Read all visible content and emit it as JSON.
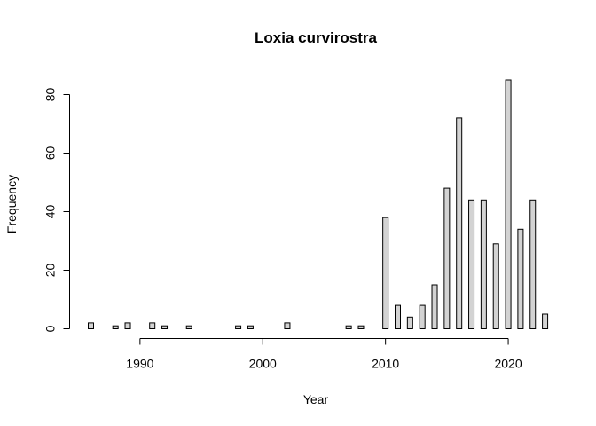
{
  "chart_data": {
    "type": "bar",
    "title": "Loxia curvirostra",
    "xlabel": "Year",
    "ylabel": "Frequency",
    "x": [
      1986,
      1987,
      1988,
      1989,
      1990,
      1991,
      1992,
      1993,
      1994,
      1995,
      1996,
      1997,
      1998,
      1999,
      2000,
      2001,
      2002,
      2003,
      2004,
      2005,
      2006,
      2007,
      2008,
      2009,
      2010,
      2011,
      2012,
      2013,
      2014,
      2015,
      2016,
      2017,
      2018,
      2019,
      2020,
      2021,
      2022,
      2023
    ],
    "values": [
      2,
      0,
      1,
      2,
      0,
      2,
      1,
      0,
      1,
      0,
      0,
      0,
      1,
      1,
      0,
      0,
      2,
      0,
      0,
      0,
      0,
      1,
      1,
      0,
      38,
      8,
      4,
      8,
      15,
      48,
      72,
      44,
      44,
      29,
      85,
      34,
      44,
      5
    ],
    "xlim": [
      1986,
      2023
    ],
    "ylim": [
      0,
      85
    ],
    "xticks": [
      1990,
      2000,
      2010,
      2020
    ],
    "yticks": [
      0,
      20,
      40,
      60,
      80
    ],
    "grid": false,
    "bar_color": "#d3d3d3",
    "edge_color": "#000000"
  }
}
